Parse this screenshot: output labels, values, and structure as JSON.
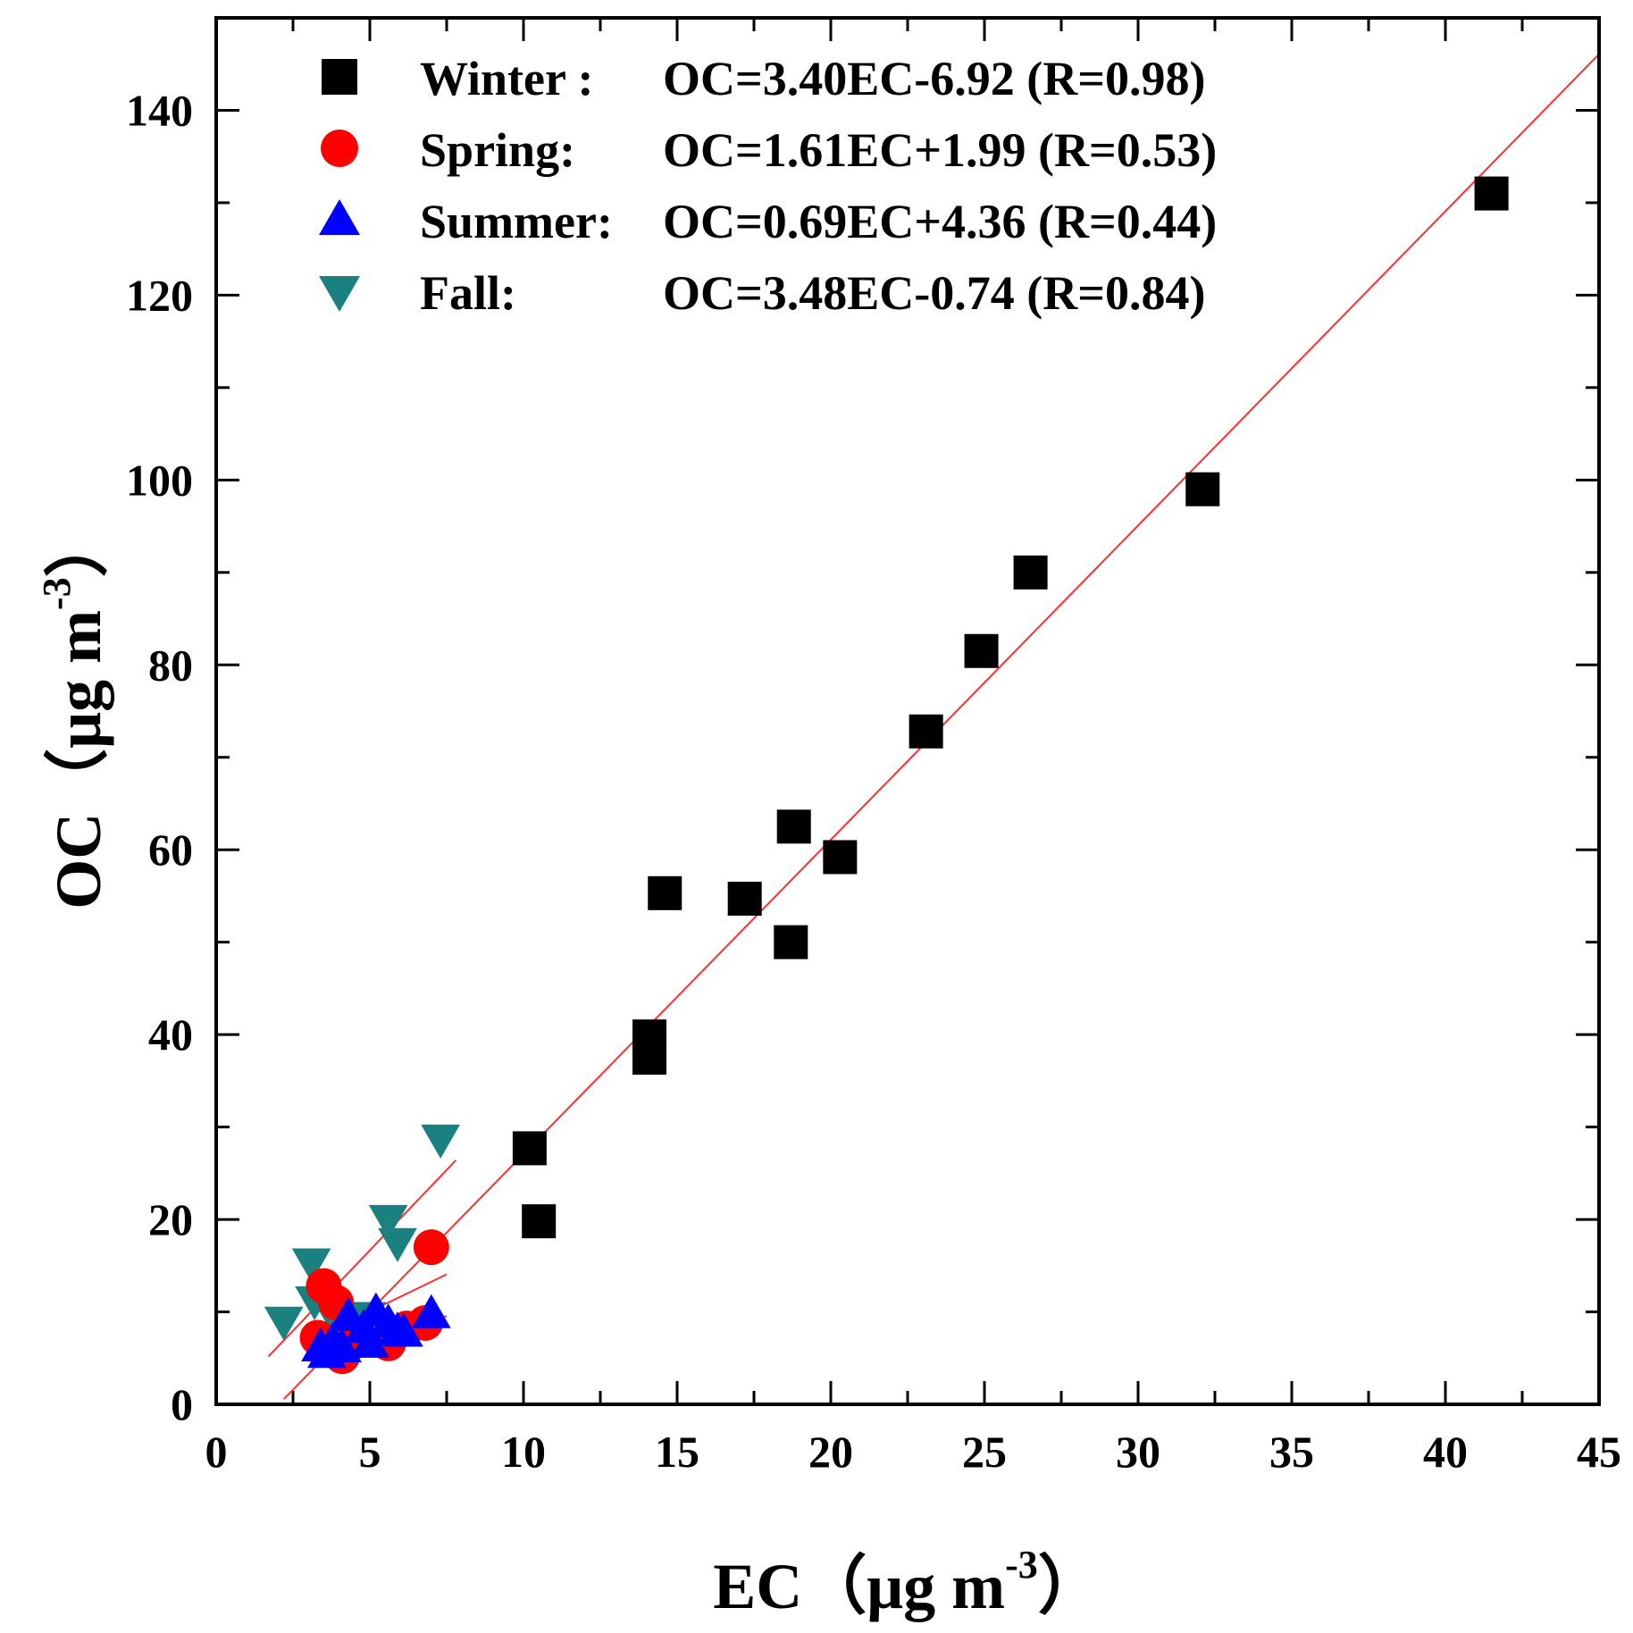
{
  "chart_data": {
    "type": "scatter",
    "xlabel": "EC（μg m",
    "xlabel_sup": "-3",
    "xlabel_close": "）",
    "ylabel": "OC（μg m",
    "ylabel_sup": "-3",
    "ylabel_close": "）",
    "xlim": [
      0,
      45
    ],
    "ylim": [
      0,
      150
    ],
    "xticks": [
      0,
      5,
      10,
      15,
      20,
      25,
      30,
      35,
      40,
      45
    ],
    "yticks": [
      0,
      20,
      40,
      60,
      80,
      100,
      120,
      140
    ],
    "xtick_labels": [
      "0",
      "5",
      "10",
      "15",
      "20",
      "25",
      "30",
      "35",
      "40",
      "45"
    ],
    "ytick_labels": [
      "0",
      "20",
      "40",
      "60",
      "80",
      "100",
      "120",
      "140"
    ],
    "legend_position": "top-left",
    "series": [
      {
        "name": "Winter",
        "legend_name": "Winter :",
        "equation": "OC=3.40EC-6.92 (R=0.98)",
        "marker": "square",
        "color": "#000000",
        "fit": {
          "slope": 3.4,
          "intercept": -6.92,
          "x_range": [
            2.2,
            45
          ]
        },
        "points": [
          [
            41.5,
            131
          ],
          [
            32.1,
            99
          ],
          [
            26.5,
            90
          ],
          [
            24.9,
            81.5
          ],
          [
            23.1,
            72.8
          ],
          [
            18.8,
            62.5
          ],
          [
            20.3,
            59.2
          ],
          [
            14.6,
            55.3
          ],
          [
            17.2,
            54.7
          ],
          [
            18.7,
            50
          ],
          [
            14.1,
            39.8
          ],
          [
            14.1,
            37.5
          ],
          [
            10.2,
            27.7
          ],
          [
            10.5,
            19.8
          ]
        ]
      },
      {
        "name": "Spring",
        "legend_name": "Spring:",
        "equation": "OC=1.61EC+1.99 (R=0.53)",
        "marker": "circle",
        "color": "#ff0000",
        "fit": {
          "slope": 1.61,
          "intercept": 1.99,
          "x_range": [
            3.2,
            7.5
          ]
        },
        "points": [
          [
            7.0,
            17
          ],
          [
            3.5,
            12.8
          ],
          [
            3.9,
            11
          ],
          [
            3.3,
            7.2
          ],
          [
            4.1,
            5.2
          ],
          [
            5.6,
            6.6
          ],
          [
            6.8,
            8.8
          ],
          [
            4.6,
            7.6
          ],
          [
            6.2,
            8.2
          ]
        ]
      },
      {
        "name": "Summer",
        "legend_name": "Summer:",
        "equation": "OC=0.69EC+4.36 (R=0.44)",
        "marker": "triangle-up",
        "color": "#0000ff",
        "fit": {
          "slope": 0.69,
          "intercept": 4.36,
          "x_range": [
            3.2,
            7.5
          ]
        },
        "points": [
          [
            3.4,
            6.2
          ],
          [
            3.8,
            6.8
          ],
          [
            4.3,
            9.5
          ],
          [
            4.8,
            8.2
          ],
          [
            5.2,
            10
          ],
          [
            5.6,
            8.8
          ],
          [
            6.1,
            7.8
          ],
          [
            7.0,
            9.8
          ],
          [
            3.6,
            5.5
          ],
          [
            4.1,
            6.1
          ],
          [
            5.0,
            6.6
          ],
          [
            5.9,
            7.9
          ]
        ]
      },
      {
        "name": "Fall",
        "legend_name": "Fall:",
        "equation": "OC=3.48EC-0.74 (R=0.84)",
        "marker": "triangle-down",
        "color": "#1a8080",
        "fit": {
          "slope": 3.48,
          "intercept": -0.74,
          "x_range": [
            1.7,
            7.8
          ]
        },
        "points": [
          [
            7.3,
            28.7
          ],
          [
            3.1,
            15.3
          ],
          [
            5.6,
            20
          ],
          [
            5.9,
            17.5
          ],
          [
            3.2,
            11.2
          ],
          [
            2.2,
            9
          ],
          [
            3.7,
            10.2
          ],
          [
            4.1,
            8.8
          ],
          [
            4.9,
            9.5
          ]
        ]
      }
    ]
  }
}
